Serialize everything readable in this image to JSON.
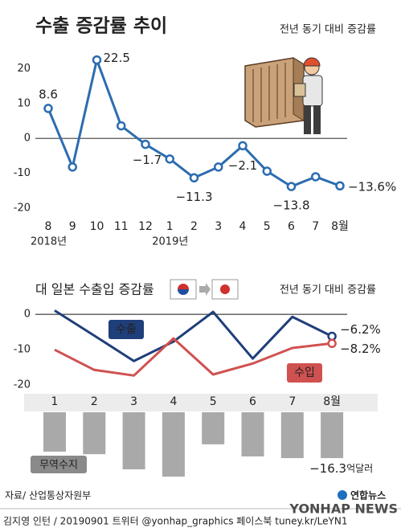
{
  "chart_data": [
    {
      "type": "line",
      "title": "수출 증감률 추이",
      "subtitle": "전년 동기 대비 증감률",
      "categories": [
        "8",
        "9",
        "10",
        "11",
        "12",
        "1",
        "2",
        "3",
        "4",
        "5",
        "6",
        "7",
        "8월"
      ],
      "x_group_labels": [
        "2018년",
        null,
        null,
        null,
        null,
        "2019년",
        null,
        null,
        null,
        null,
        null,
        null,
        null
      ],
      "values": [
        8.6,
        -8.2,
        22.5,
        3.6,
        -1.7,
        -5.9,
        -11.3,
        -8.2,
        -2.1,
        -9.4,
        -13.8,
        -11.0,
        -13.6
      ],
      "value_labels": [
        "8.6",
        null,
        "22.5",
        null,
        "−1.7",
        null,
        "−11.3",
        null,
        "−2.1",
        null,
        "−13.8",
        null,
        "−13.6%"
      ],
      "color": "#2b6cb0",
      "ylim": [
        -22,
        26
      ],
      "yticks": [
        20,
        10,
        0,
        -10,
        -20
      ]
    },
    {
      "type": "line",
      "title": "대 일본 수출입 증감률",
      "subtitle": "전년 동기 대비 증감률",
      "categories": [
        "1",
        "2",
        "3",
        "4",
        "5",
        "6",
        "7",
        "8월"
      ],
      "series": [
        {
          "name": "수출",
          "color": "#1f3f7a",
          "values": [
            1.1,
            -6.0,
            -13.2,
            -7.7,
            0.7,
            -12.5,
            -0.7,
            -6.2
          ],
          "value_labels": [
            null,
            null,
            null,
            null,
            null,
            null,
            null,
            "−6.2%"
          ]
        },
        {
          "name": "수입",
          "color": "#cf5250",
          "values": [
            -10.0,
            -15.7,
            -17.3,
            -6.8,
            -17.0,
            -13.9,
            -9.5,
            -8.2
          ],
          "value_labels": [
            null,
            null,
            null,
            null,
            null,
            null,
            null,
            "−8.2%"
          ]
        },
        {
          "name": "무역수지",
          "type": "bar",
          "axis": "y2",
          "color": "#a9a9a9",
          "unit": "억달러",
          "values": [
            -14.0,
            -14.9,
            -20.3,
            -22.9,
            -11.4,
            -15.7,
            -16.3,
            -16.3
          ],
          "value_labels": [
            null,
            null,
            null,
            null,
            null,
            null,
            null,
            "−16.3"
          ]
        }
      ],
      "ylim": [
        -22,
        3
      ],
      "yticks": [
        0,
        -10,
        -20
      ],
      "y2lim": [
        -26,
        0
      ]
    }
  ],
  "source": "자료/ 산업통상자원부",
  "credit": "김지영 인턴 / 20190901 트위터 @yonhap_graphics  페이스북 tuney.kr/LeYN1",
  "logo": {
    "name": "연합뉴스",
    "english": "YONHAP NEWS"
  }
}
